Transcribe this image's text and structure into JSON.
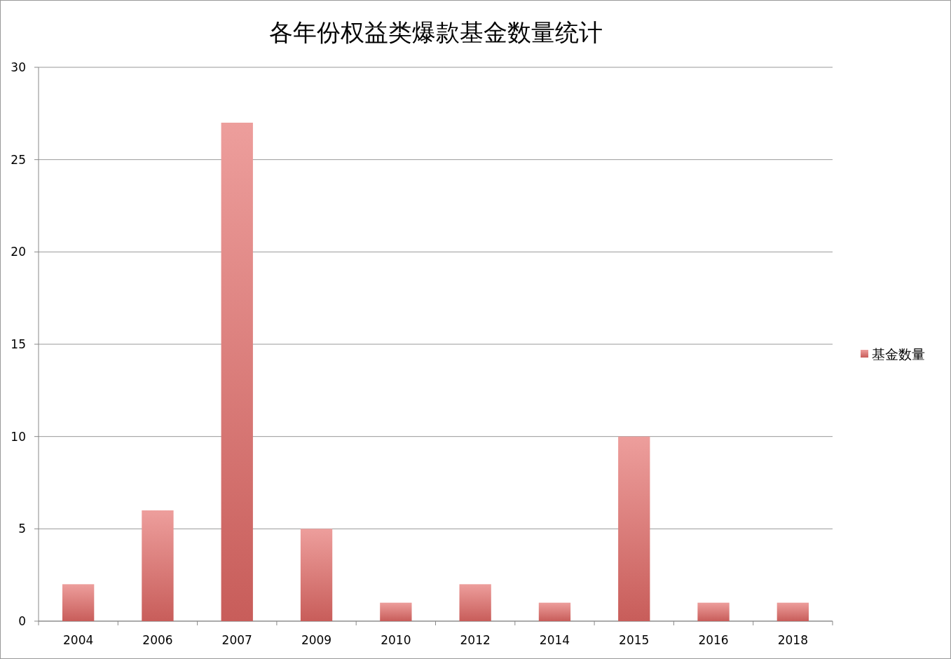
{
  "chart_data": {
    "type": "bar",
    "title": "各年份权益类爆款基金数量统计",
    "categories": [
      "2004",
      "2006",
      "2007",
      "2009",
      "2010",
      "2012",
      "2014",
      "2015",
      "2016",
      "2018"
    ],
    "series": [
      {
        "name": "基金数量",
        "color": "#e36a66",
        "values": [
          2,
          6,
          27,
          5,
          1,
          2,
          1,
          10,
          1,
          1
        ]
      }
    ],
    "ylim": [
      0,
      30
    ],
    "yticks": [
      0,
      5,
      10,
      15,
      20,
      25,
      30
    ],
    "grid": "y",
    "legend": "right"
  }
}
